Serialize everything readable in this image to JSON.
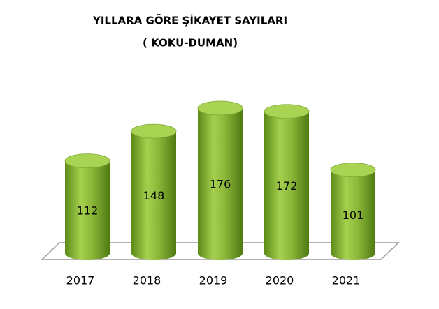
{
  "chart_data": {
    "type": "bar",
    "title": "YILLARA GÖRE ŞİKAYET SAYILARI",
    "subtitle": "( KOKU-DUMAN)",
    "categories": [
      "2017",
      "2018",
      "2019",
      "2020",
      "2021"
    ],
    "values": [
      112,
      148,
      176,
      172,
      101
    ],
    "color": "#8cb83a"
  }
}
